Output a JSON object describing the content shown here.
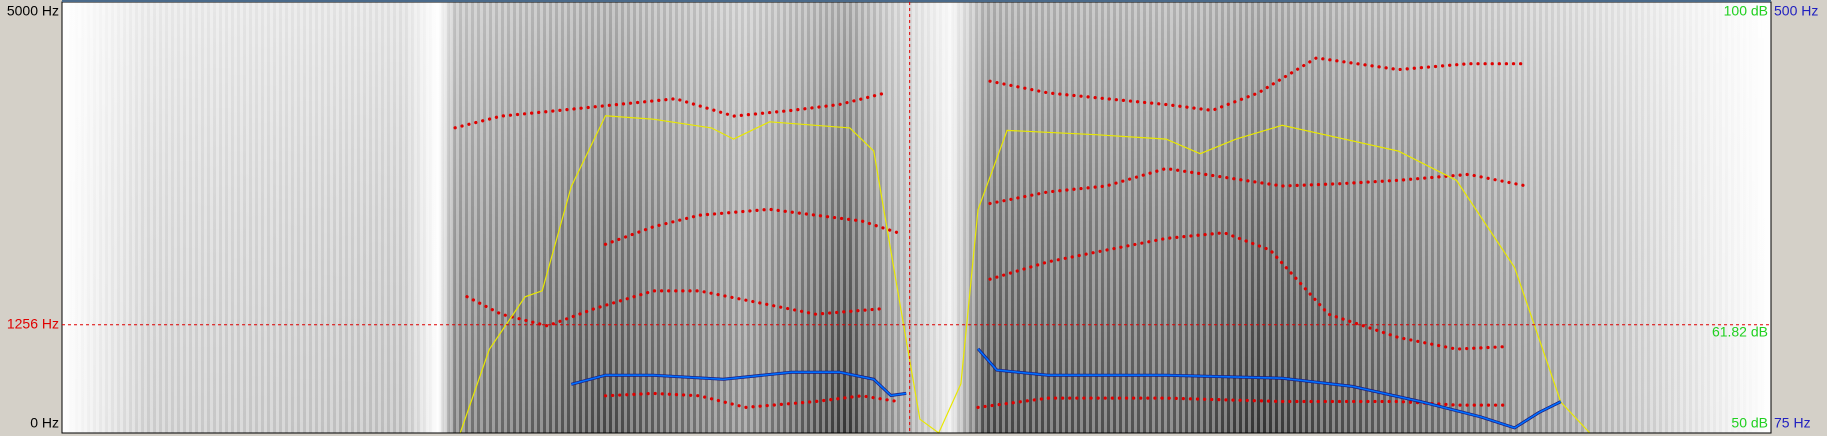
{
  "chart_data": {
    "type": "spectrogram",
    "xlim": [
      0,
      1
    ],
    "ylim": [
      0,
      5000
    ],
    "yticks": [
      {
        "value": 5000,
        "label": "5000 Hz"
      },
      {
        "value": 0,
        "label": "0 Hz"
      }
    ],
    "cursor": {
      "time": 0.496,
      "frequency": {
        "value": 1256,
        "label": "1256 Hz"
      },
      "intensity": {
        "value": 61.82,
        "label": "61.82 dB"
      },
      "color": "#e00000"
    },
    "intensity": {
      "color": "#e8e800",
      "ylim": [
        50,
        100
      ],
      "yticks": [
        {
          "value": 100,
          "label": "100 dB"
        },
        {
          "value": 50,
          "label": "50 dB"
        }
      ],
      "x": [
        0.233,
        0.25,
        0.271,
        0.281,
        0.298,
        0.318,
        0.346,
        0.38,
        0.393,
        0.414,
        0.461,
        0.475,
        0.489,
        0.502,
        0.513,
        0.526,
        0.536,
        0.553,
        0.605,
        0.646,
        0.666,
        0.687,
        0.714,
        0.782,
        0.816,
        0.85,
        0.877,
        0.894
      ],
      "values": [
        50,
        59.7,
        65.8,
        66.5,
        78.6,
        86.8,
        86.4,
        85.4,
        84.1,
        86.1,
        85.4,
        82.7,
        66.5,
        51.6,
        50,
        55.7,
        75.9,
        85.1,
        84.6,
        84.1,
        82.4,
        84.1,
        85.7,
        82.7,
        79.3,
        69.2,
        53.6,
        50
      ]
    },
    "pitch": {
      "color": "#0070ff",
      "ylim": [
        75,
        500
      ],
      "yticks": [
        {
          "value": 500,
          "label": "500 Hz"
        },
        {
          "value": 75,
          "label": "75 Hz"
        }
      ],
      "x": [
        0.298,
        0.318,
        0.346,
        0.387,
        0.427,
        0.455,
        0.475,
        0.485,
        0.494,
        null,
        0.536,
        0.547,
        0.577,
        0.646,
        0.714,
        0.755,
        0.795,
        0.83,
        0.85,
        0.864,
        0.877
      ],
      "values": [
        123,
        132,
        132,
        128,
        135,
        135,
        128,
        112,
        114,
        null,
        158,
        137,
        132,
        132,
        129,
        121,
        106,
        91,
        80,
        95,
        106
      ]
    },
    "formants": {
      "color": "#e00000",
      "tracks": [
        {
          "x": [
            0.318,
            0.346,
            0.373,
            0.4,
            0.441,
            0.468,
            0.489
          ],
          "values": [
            432,
            459,
            432,
            297,
            365,
            432,
            365
          ]
        },
        {
          "x": [
            0.536,
            0.577,
            0.646,
            0.714,
            0.782,
            0.816,
            0.843
          ],
          "values": [
            297,
            405,
            405,
            365,
            365,
            324,
            324
          ]
        },
        {
          "x": [
            0.237,
            0.257,
            0.284,
            0.312,
            0.346,
            0.373,
            0.407,
            0.441,
            0.482
          ],
          "values": [
            1581,
            1378,
            1243,
            1446,
            1649,
            1649,
            1514,
            1378,
            1446
          ]
        },
        {
          "x": [
            0.543,
            0.577,
            0.611,
            0.646,
            0.68,
            0.707,
            0.741,
            0.782,
            0.816,
            0.843
          ],
          "values": [
            1784,
            1986,
            2122,
            2257,
            2324,
            2122,
            1378,
            1108,
            973,
            1000
          ]
        },
        {
          "x": [
            0.318,
            0.346,
            0.373,
            0.414,
            0.441,
            0.468,
            0.489
          ],
          "values": [
            2189,
            2392,
            2527,
            2595,
            2527,
            2459,
            2324
          ]
        },
        {
          "x": [
            0.543,
            0.577,
            0.611,
            0.646,
            0.714,
            0.748,
            0.782,
            0.823,
            0.857
          ],
          "values": [
            2662,
            2797,
            2865,
            3068,
            2865,
            2892,
            2932,
            3000,
            2865
          ]
        },
        {
          "x": [
            0.23,
            0.257,
            0.291,
            0.325,
            0.359,
            0.393,
            0.427,
            0.455,
            0.482
          ],
          "values": [
            3541,
            3676,
            3743,
            3811,
            3878,
            3676,
            3743,
            3811,
            3946
          ]
        },
        {
          "x": [
            0.543,
            0.577,
            0.611,
            0.646,
            0.673,
            0.7,
            0.734,
            0.782,
            0.823,
            0.857
          ],
          "values": [
            4081,
            3946,
            3878,
            3811,
            3743,
            3946,
            4351,
            4216,
            4284,
            4284
          ]
        }
      ]
    }
  }
}
